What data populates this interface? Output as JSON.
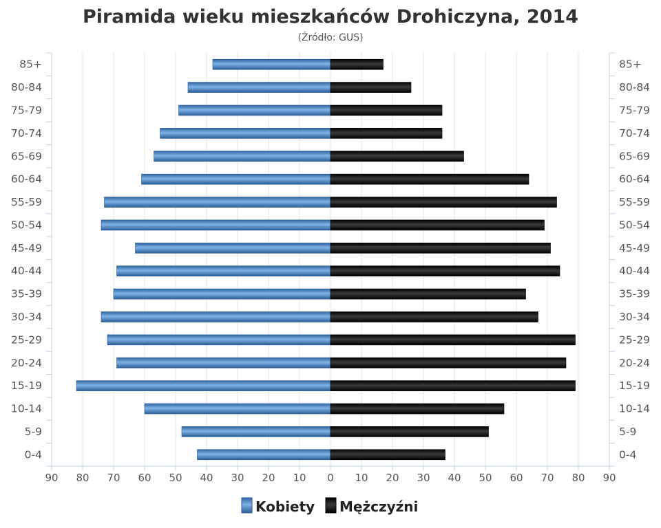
{
  "chart_data": {
    "type": "bar",
    "title": "Piramida wieku mieszkańców Drohiczyna, 2014",
    "subtitle": "(Źródło: GUS)",
    "categories": [
      "85+",
      "80-84",
      "75-79",
      "70-74",
      "65-69",
      "60-64",
      "55-59",
      "50-54",
      "45-49",
      "40-44",
      "35-39",
      "30-34",
      "25-29",
      "20-24",
      "15-19",
      "10-14",
      "5-9",
      "0-4"
    ],
    "series": [
      {
        "name": "Kobiety",
        "color": "#4a86c5",
        "values": [
          38,
          46,
          49,
          55,
          57,
          61,
          73,
          74,
          63,
          69,
          70,
          74,
          72,
          69,
          82,
          60,
          48,
          43
        ]
      },
      {
        "name": "Mężczyźni",
        "color": "#1c1c1c",
        "values": [
          17,
          26,
          36,
          36,
          43,
          64,
          73,
          69,
          71,
          74,
          63,
          67,
          79,
          76,
          79,
          56,
          51,
          37
        ]
      }
    ],
    "xlim": [
      -90,
      90
    ],
    "xticks": [
      "90",
      "80",
      "70",
      "60",
      "50",
      "40",
      "30",
      "20",
      "10",
      "0",
      "10",
      "20",
      "30",
      "40",
      "50",
      "60",
      "70",
      "80",
      "90"
    ],
    "grid": true,
    "legend_position": "bottom"
  }
}
